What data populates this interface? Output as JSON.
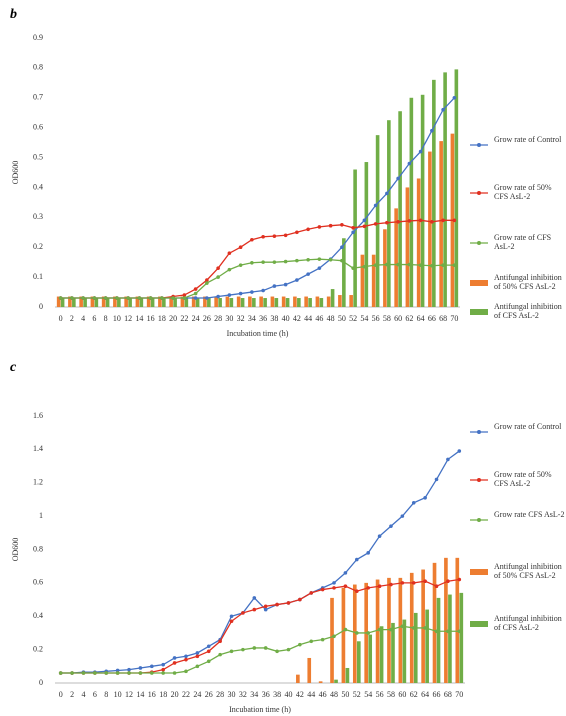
{
  "chart_data": [
    {
      "type": "combo",
      "title": "b",
      "xlabel": "Incubation time (h)",
      "ylabel": "OD600",
      "categories": [
        0,
        2,
        4,
        6,
        8,
        10,
        12,
        14,
        16,
        18,
        20,
        22,
        24,
        26,
        28,
        30,
        32,
        34,
        36,
        38,
        40,
        42,
        44,
        46,
        48,
        50,
        52,
        54,
        56,
        58,
        60,
        62,
        64,
        66,
        68,
        70
      ],
      "ylim": [
        0,
        0.9
      ],
      "yticks": [
        0,
        0.1,
        0.2,
        0.3,
        0.4,
        0.5,
        0.6,
        0.7,
        0.8,
        0.9
      ],
      "series": [
        {
          "name": "Grow rate of Control",
          "type": "line",
          "color": "#4472c4",
          "values": [
            0.03,
            0.03,
            0.03,
            0.03,
            0.03,
            0.03,
            0.03,
            0.03,
            0.03,
            0.03,
            0.03,
            0.03,
            0.03,
            0.03,
            0.035,
            0.04,
            0.045,
            0.05,
            0.055,
            0.07,
            0.075,
            0.09,
            0.11,
            0.13,
            0.16,
            0.2,
            0.25,
            0.29,
            0.34,
            0.38,
            0.43,
            0.48,
            0.52,
            0.59,
            0.66,
            0.7
          ]
        },
        {
          "name": "Grow rate of 50% CFS AsL-2",
          "type": "line",
          "color": "#e03020",
          "values": [
            0.03,
            0.03,
            0.03,
            0.03,
            0.03,
            0.03,
            0.03,
            0.03,
            0.03,
            0.03,
            0.035,
            0.04,
            0.06,
            0.09,
            0.13,
            0.18,
            0.2,
            0.225,
            0.235,
            0.237,
            0.24,
            0.25,
            0.26,
            0.268,
            0.272,
            0.275,
            0.265,
            0.27,
            0.278,
            0.282,
            0.285,
            0.288,
            0.29,
            0.285,
            0.29,
            0.29
          ]
        },
        {
          "name": "Grow rate of CFS AsL-2",
          "type": "line",
          "color": "#70ad47",
          "values": [
            0.03,
            0.03,
            0.03,
            0.03,
            0.03,
            0.03,
            0.03,
            0.03,
            0.03,
            0.03,
            0.03,
            0.03,
            0.045,
            0.08,
            0.1,
            0.125,
            0.14,
            0.148,
            0.15,
            0.15,
            0.152,
            0.155,
            0.158,
            0.16,
            0.158,
            0.155,
            0.13,
            0.135,
            0.14,
            0.142,
            0.142,
            0.142,
            0.14,
            0.138,
            0.14,
            0.14
          ]
        },
        {
          "name": "Antifungal inhibition of 50% CFS AsL-2",
          "type": "bar",
          "color": "#ed7d31",
          "values": [
            0.035,
            0.035,
            0.035,
            0.035,
            0.035,
            0.035,
            0.035,
            0.035,
            0.035,
            0.035,
            0.035,
            0.035,
            0.035,
            0.035,
            0.035,
            0.035,
            0.035,
            0.035,
            0.035,
            0.035,
            0.035,
            0.035,
            0.035,
            0.035,
            0.035,
            0.04,
            0.04,
            0.175,
            0.175,
            0.26,
            0.33,
            0.4,
            0.43,
            0.52,
            0.555,
            0.58
          ]
        },
        {
          "name": "Antifungal inhibition of CFS AsL-2",
          "type": "bar",
          "color": "#70ad47",
          "values": [
            0.03,
            0.03,
            0.03,
            0.03,
            0.03,
            0.03,
            0.03,
            0.03,
            0.03,
            0.03,
            0.03,
            0.03,
            0.03,
            0.03,
            0.03,
            0.03,
            0.03,
            0.03,
            0.03,
            0.03,
            0.03,
            0.03,
            0.03,
            0.03,
            0.06,
            0.23,
            0.46,
            0.485,
            0.575,
            0.625,
            0.655,
            0.7,
            0.71,
            0.76,
            0.785,
            0.795
          ]
        }
      ]
    },
    {
      "type": "combo",
      "title": "c",
      "xlabel": "Incubation time (h)",
      "ylabel": "OD600",
      "categories": [
        0,
        2,
        4,
        6,
        8,
        10,
        12,
        14,
        16,
        18,
        20,
        22,
        24,
        26,
        28,
        30,
        32,
        34,
        36,
        38,
        40,
        42,
        44,
        46,
        48,
        50,
        52,
        54,
        56,
        58,
        60,
        62,
        64,
        66,
        68,
        70
      ],
      "ylim": [
        0,
        1.6
      ],
      "yticks": [
        0,
        0.2,
        0.4,
        0.6,
        0.8,
        1,
        1.2,
        1.4,
        1.6
      ],
      "series": [
        {
          "name": "Grow rate of Control",
          "type": "line",
          "color": "#4472c4",
          "values": [
            0.06,
            0.06,
            0.065,
            0.065,
            0.07,
            0.075,
            0.08,
            0.09,
            0.1,
            0.11,
            0.15,
            0.16,
            0.18,
            0.22,
            0.26,
            0.4,
            0.42,
            0.51,
            0.44,
            0.47,
            0.48,
            0.5,
            0.54,
            0.57,
            0.6,
            0.66,
            0.74,
            0.78,
            0.88,
            0.94,
            1.0,
            1.08,
            1.11,
            1.22,
            1.34,
            1.39
          ]
        },
        {
          "name": "Grow rate of 50% CFS AsL-2",
          "type": "line",
          "color": "#e03020",
          "values": [
            0.06,
            0.06,
            0.06,
            0.06,
            0.06,
            0.06,
            0.06,
            0.06,
            0.065,
            0.08,
            0.12,
            0.14,
            0.16,
            0.19,
            0.25,
            0.37,
            0.42,
            0.44,
            0.46,
            0.47,
            0.48,
            0.5,
            0.54,
            0.56,
            0.57,
            0.58,
            0.55,
            0.57,
            0.58,
            0.59,
            0.6,
            0.6,
            0.61,
            0.58,
            0.61,
            0.62
          ]
        },
        {
          "name": "Grow rate CFS AsL-2",
          "type": "line",
          "color": "#70ad47",
          "values": [
            0.06,
            0.06,
            0.06,
            0.06,
            0.06,
            0.06,
            0.06,
            0.06,
            0.06,
            0.06,
            0.06,
            0.07,
            0.1,
            0.13,
            0.17,
            0.19,
            0.2,
            0.21,
            0.21,
            0.19,
            0.2,
            0.23,
            0.25,
            0.26,
            0.28,
            0.32,
            0.3,
            0.3,
            0.32,
            0.32,
            0.34,
            0.33,
            0.33,
            0.31,
            0.31,
            0.31
          ]
        },
        {
          "name": "Antifungal inhibition of 50% CFS AsL-2",
          "type": "bar",
          "color": "#ed7d31",
          "values": [
            0,
            0,
            0,
            0,
            0,
            0,
            0,
            0,
            0,
            0,
            0,
            0,
            0,
            0,
            0,
            0,
            0,
            0,
            0,
            0,
            0,
            0.05,
            0.15,
            0.01,
            0.51,
            0.57,
            0.59,
            0.6,
            0.62,
            0.63,
            0.63,
            0.66,
            0.68,
            0.72,
            0.75,
            0.75
          ]
        },
        {
          "name": "Antifungal inhibition of CFS AsL-2",
          "type": "bar",
          "color": "#70ad47",
          "values": [
            0,
            0,
            0,
            0,
            0,
            0,
            0,
            0,
            0,
            0,
            0,
            0,
            0,
            0,
            0,
            0,
            0,
            0,
            0,
            0,
            0,
            0,
            0,
            0,
            0.02,
            0.09,
            0.25,
            0.29,
            0.34,
            0.36,
            0.38,
            0.42,
            0.44,
            0.51,
            0.53,
            0.54
          ]
        }
      ]
    }
  ]
}
